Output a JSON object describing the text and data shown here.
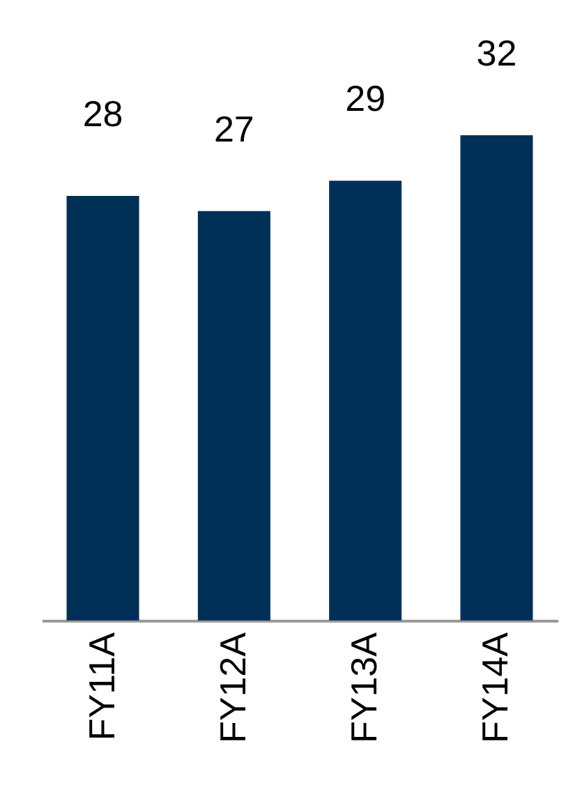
{
  "chart_data": {
    "type": "bar",
    "categories": [
      "FY11A",
      "FY12A",
      "FY13A",
      "FY14A"
    ],
    "values": [
      28,
      27,
      29,
      32
    ],
    "color": "#003057",
    "data_labels": true
  }
}
